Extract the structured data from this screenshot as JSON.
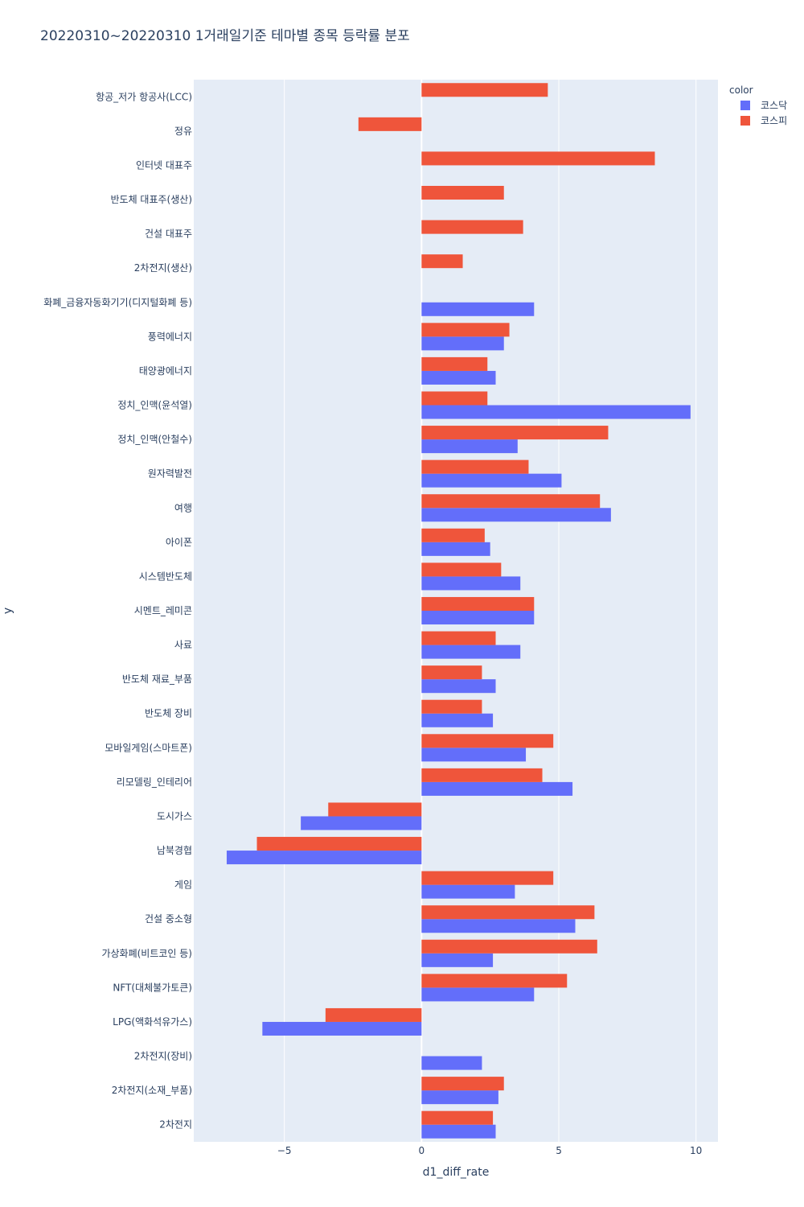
{
  "chart_data": {
    "type": "bar",
    "orientation": "horizontal",
    "barmode": "group",
    "title": "20220310~20220310 1거래일기준 테마별 종목 등락률 분포",
    "xlabel": "d1_diff_rate",
    "ylabel": "y",
    "xlim": [
      -8.3,
      10.8
    ],
    "x_ticks": [
      -5,
      0,
      5,
      10
    ],
    "x_tick_labels": [
      "−5",
      "0",
      "5",
      "10"
    ],
    "grid": true,
    "legend": {
      "title": "color",
      "placement": "top-right"
    },
    "categories": [
      "항공_저가 항공사(LCC)",
      "정유",
      "인터넷 대표주",
      "반도체 대표주(생산)",
      "건설 대표주",
      "2차전지(생산)",
      "화폐_금융자동화기기(디지털화폐 등)",
      "풍력에너지",
      "태양광에너지",
      "정치_인맥(윤석열)",
      "정치_인맥(안철수)",
      "원자력발전",
      "여행",
      "아이폰",
      "시스템반도체",
      "시멘트_레미콘",
      "사료",
      "반도체 재료_부품",
      "반도체 장비",
      "모바일게임(스마트폰)",
      "리모델링_인테리어",
      "도시가스",
      "남북경협",
      "게임",
      "건설 중소형",
      "가상화폐(비트코인 등)",
      "NFT(대체불가토큰)",
      "LPG(액화석유가스)",
      "2차전지(장비)",
      "2차전지(소재_부품)",
      "2차전지"
    ],
    "series": [
      {
        "name": "코스닥",
        "color": "#636efa",
        "values": [
          null,
          null,
          null,
          null,
          null,
          null,
          4.1,
          3.0,
          2.7,
          9.8,
          3.5,
          5.1,
          6.9,
          2.5,
          3.6,
          4.1,
          3.6,
          2.7,
          2.6,
          3.8,
          5.5,
          -4.4,
          -7.1,
          3.4,
          5.6,
          2.6,
          4.1,
          -5.8,
          2.2,
          2.8,
          2.7
        ]
      },
      {
        "name": "코스피",
        "color": "#ef553b",
        "values": [
          4.6,
          -2.3,
          8.5,
          3.0,
          3.7,
          1.5,
          null,
          3.2,
          2.4,
          2.4,
          6.8,
          3.9,
          6.5,
          2.3,
          2.9,
          4.1,
          2.7,
          2.2,
          2.2,
          4.8,
          4.4,
          -3.4,
          -6.0,
          4.8,
          6.3,
          6.4,
          5.3,
          -3.5,
          null,
          3.0,
          2.6
        ]
      }
    ]
  }
}
